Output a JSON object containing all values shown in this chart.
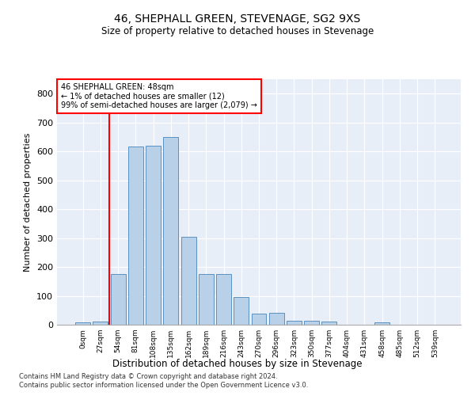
{
  "title": "46, SHEPHALL GREEN, STEVENAGE, SG2 9XS",
  "subtitle": "Size of property relative to detached houses in Stevenage",
  "xlabel": "Distribution of detached houses by size in Stevenage",
  "ylabel": "Number of detached properties",
  "bar_color": "#b8d0e8",
  "bar_edge_color": "#5a90c0",
  "background_color": "#e8eef8",
  "grid_color": "#ffffff",
  "categories": [
    "0sqm",
    "27sqm",
    "54sqm",
    "81sqm",
    "108sqm",
    "135sqm",
    "162sqm",
    "189sqm",
    "216sqm",
    "243sqm",
    "270sqm",
    "296sqm",
    "323sqm",
    "350sqm",
    "377sqm",
    "404sqm",
    "431sqm",
    "458sqm",
    "485sqm",
    "512sqm",
    "539sqm"
  ],
  "values": [
    8,
    12,
    175,
    617,
    619,
    650,
    305,
    175,
    175,
    97,
    38,
    40,
    14,
    14,
    10,
    0,
    0,
    8,
    0,
    0,
    0
  ],
  "ylim": [
    0,
    850
  ],
  "yticks": [
    0,
    100,
    200,
    300,
    400,
    500,
    600,
    700,
    800
  ],
  "red_line_x": 1.5,
  "annotation_line1": "46 SHEPHALL GREEN: 48sqm",
  "annotation_line2": "← 1% of detached houses are smaller (12)",
  "annotation_line3": "99% of semi-detached houses are larger (2,079) →",
  "footer1": "Contains HM Land Registry data © Crown copyright and database right 2024.",
  "footer2": "Contains public sector information licensed under the Open Government Licence v3.0."
}
